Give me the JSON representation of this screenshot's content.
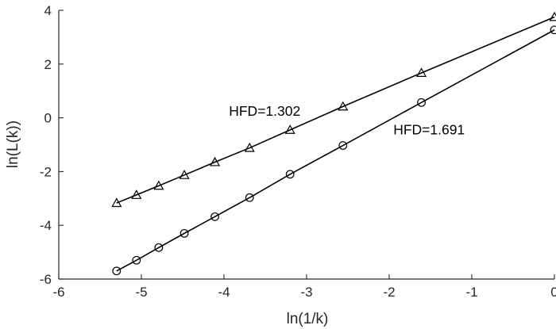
{
  "chart_data": {
    "type": "line",
    "title": "",
    "xlabel": "ln(1/k)",
    "ylabel": "ln(L(k))",
    "xlim": [
      -6,
      0
    ],
    "ylim": [
      -6,
      4
    ],
    "xticks": [
      -6,
      -5,
      -4,
      -3,
      -2,
      -1,
      0
    ],
    "yticks": [
      -6,
      -4,
      -2,
      0,
      2,
      4
    ],
    "xtick_labels": [
      "-6",
      "-5",
      "-4",
      "-3",
      "-2",
      "-1",
      "0"
    ],
    "ytick_labels": [
      "-6",
      "-4",
      "-2",
      "0",
      "2",
      "4"
    ],
    "grid": false,
    "series": [
      {
        "marker": "triangle",
        "color": "#000000",
        "x": [
          -5.3,
          -5.06,
          -4.79,
          -4.48,
          -4.11,
          -3.69,
          -3.2,
          -2.56,
          -1.61,
          0.0
        ],
        "y": [
          -3.17,
          -2.87,
          -2.53,
          -2.13,
          -1.65,
          -1.12,
          -0.45,
          0.42,
          1.67,
          3.75
        ]
      },
      {
        "marker": "circle",
        "color": "#000000",
        "x": [
          -5.3,
          -5.06,
          -4.79,
          -4.48,
          -4.11,
          -3.69,
          -3.2,
          -2.56,
          -1.61,
          0.0
        ],
        "y": [
          -5.7,
          -5.3,
          -4.83,
          -4.3,
          -3.68,
          -2.97,
          -2.1,
          -1.03,
          0.57,
          3.27
        ]
      }
    ],
    "annotations": [
      {
        "text": "HFD=1.302",
        "x": -3.94,
        "y": 0.08
      },
      {
        "text": "HFD=1.691",
        "x": -1.95,
        "y": -0.62
      }
    ]
  }
}
